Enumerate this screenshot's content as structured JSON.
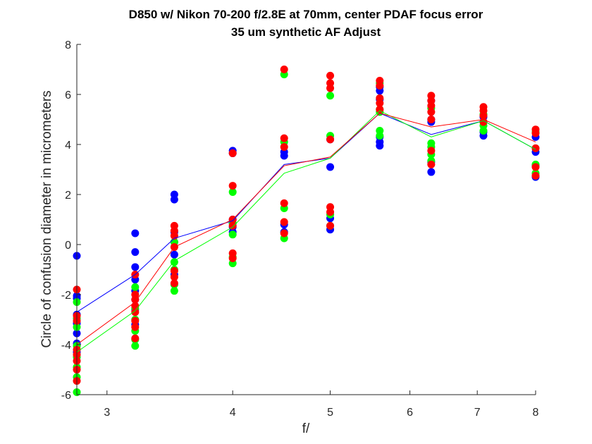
{
  "chart_data": {
    "type": "scatter",
    "title": "D850 w/ Nikon 70-200 f/2.8E at 70mm, center PDAF focus error",
    "subtitle": "35 um synthetic AF Adjust",
    "xlabel": "f/",
    "ylabel": "Circle of confusion diameter in micrometers",
    "xscale": "log",
    "xlim": [
      2.8,
      8
    ],
    "ylim": [
      -6,
      8
    ],
    "xticks": [
      3,
      4,
      5,
      6,
      7,
      8
    ],
    "yticks": [
      -6,
      -4,
      -2,
      0,
      2,
      4,
      6,
      8
    ],
    "grid": false,
    "legend": "none",
    "x": [
      2.8,
      3.2,
      3.5,
      4,
      4.5,
      5,
      5.6,
      6.3,
      7.1,
      8
    ],
    "series": [
      {
        "color": "#0000ff",
        "points": [
          [
            2.8,
            -0.45
          ],
          [
            2.8,
            -2.05
          ],
          [
            2.8,
            -2.15
          ],
          [
            2.8,
            -2.8
          ],
          [
            2.8,
            -3.15
          ],
          [
            2.8,
            -3.55
          ],
          [
            2.8,
            -3.95
          ],
          [
            2.8,
            -4.3
          ],
          [
            3.2,
            0.45
          ],
          [
            3.2,
            -0.3
          ],
          [
            3.2,
            -0.9
          ],
          [
            3.2,
            -1.4
          ],
          [
            3.2,
            -1.85
          ],
          [
            3.2,
            -2.2
          ],
          [
            3.2,
            -2.6
          ],
          [
            3.2,
            -3.2
          ],
          [
            3.5,
            2.0
          ],
          [
            3.5,
            1.8
          ],
          [
            3.5,
            0.5
          ],
          [
            3.5,
            0.1
          ],
          [
            3.5,
            -0.4
          ],
          [
            3.5,
            -1.2
          ],
          [
            4,
            3.75
          ],
          [
            4,
            3.65
          ],
          [
            4,
            1.0
          ],
          [
            4,
            0.85
          ],
          [
            4,
            0.7
          ],
          [
            4,
            0.5
          ],
          [
            4.5,
            3.7
          ],
          [
            4.5,
            3.55
          ],
          [
            4.5,
            0.8
          ],
          [
            4.5,
            0.5
          ],
          [
            5,
            4.2
          ],
          [
            5,
            3.1
          ],
          [
            5,
            1.05
          ],
          [
            5,
            0.6
          ],
          [
            5.6,
            6.3
          ],
          [
            5.6,
            6.15
          ],
          [
            5.6,
            5.8
          ],
          [
            5.6,
            4.3
          ],
          [
            5.6,
            4.1
          ],
          [
            5.6,
            3.95
          ],
          [
            6.3,
            5.75
          ],
          [
            6.3,
            5.0
          ],
          [
            6.3,
            4.9
          ],
          [
            6.3,
            3.3
          ],
          [
            6.3,
            2.9
          ],
          [
            7.1,
            5.1
          ],
          [
            7.1,
            4.9
          ],
          [
            7.1,
            4.5
          ],
          [
            7.1,
            4.35
          ],
          [
            8,
            4.3
          ],
          [
            8,
            3.7
          ],
          [
            8,
            3.15
          ],
          [
            8,
            2.7
          ]
        ],
        "means": [
          -2.7,
          -1.2,
          0.25,
          0.95,
          3.2,
          3.45,
          5.25,
          4.4,
          4.95,
          3.8
        ]
      },
      {
        "color": "#00ff00",
        "points": [
          [
            2.8,
            -2.3
          ],
          [
            2.8,
            -2.95
          ],
          [
            2.8,
            -3.3
          ],
          [
            2.8,
            -4.05
          ],
          [
            2.8,
            -4.5
          ],
          [
            2.8,
            -4.9
          ],
          [
            2.8,
            -5.3
          ],
          [
            2.8,
            -5.9
          ],
          [
            3.2,
            -1.7
          ],
          [
            3.2,
            -2.55
          ],
          [
            3.2,
            -3.0
          ],
          [
            3.2,
            -3.45
          ],
          [
            3.2,
            -3.8
          ],
          [
            3.2,
            -4.05
          ],
          [
            3.5,
            0.1
          ],
          [
            3.5,
            -0.7
          ],
          [
            3.5,
            -1.0
          ],
          [
            3.5,
            -1.6
          ],
          [
            3.5,
            -1.85
          ],
          [
            4,
            2.1
          ],
          [
            4,
            0.85
          ],
          [
            4,
            0.4
          ],
          [
            4,
            -0.5
          ],
          [
            4,
            -0.75
          ],
          [
            4.5,
            6.8
          ],
          [
            4.5,
            4.1
          ],
          [
            4.5,
            1.45
          ],
          [
            4.5,
            0.25
          ],
          [
            5,
            5.95
          ],
          [
            5,
            4.35
          ],
          [
            5,
            1.2
          ],
          [
            5,
            0.75
          ],
          [
            5.6,
            6.45
          ],
          [
            5.6,
            5.4
          ],
          [
            5.6,
            5.3
          ],
          [
            5.6,
            4.55
          ],
          [
            5.6,
            4.35
          ],
          [
            6.3,
            5.45
          ],
          [
            6.3,
            4.05
          ],
          [
            6.3,
            3.9
          ],
          [
            6.3,
            3.6
          ],
          [
            6.3,
            3.35
          ],
          [
            7.1,
            5.2
          ],
          [
            7.1,
            4.75
          ],
          [
            7.1,
            4.55
          ],
          [
            8,
            4.5
          ],
          [
            8,
            3.85
          ],
          [
            8,
            3.2
          ],
          [
            8,
            2.85
          ]
        ],
        "means": [
          -4.3,
          -2.65,
          -0.65,
          0.7,
          2.85,
          3.45,
          5.35,
          4.3,
          4.95,
          3.8
        ]
      },
      {
        "color": "#ff0000",
        "points": [
          [
            2.8,
            -1.8
          ],
          [
            2.8,
            -2.85
          ],
          [
            2.8,
            -3.05
          ],
          [
            2.8,
            -4.2
          ],
          [
            2.8,
            -4.4
          ],
          [
            2.8,
            -4.65
          ],
          [
            2.8,
            -5.0
          ],
          [
            2.8,
            -5.45
          ],
          [
            3.2,
            -1.2
          ],
          [
            3.2,
            -2.0
          ],
          [
            3.2,
            -2.2
          ],
          [
            3.2,
            -2.45
          ],
          [
            3.2,
            -2.7
          ],
          [
            3.2,
            -3.05
          ],
          [
            3.2,
            -3.3
          ],
          [
            3.2,
            -3.75
          ],
          [
            3.5,
            0.75
          ],
          [
            3.5,
            0.55
          ],
          [
            3.5,
            0.35
          ],
          [
            3.5,
            -0.1
          ],
          [
            3.5,
            -1.05
          ],
          [
            3.5,
            -1.3
          ],
          [
            3.5,
            -1.55
          ],
          [
            4,
            3.65
          ],
          [
            4,
            2.35
          ],
          [
            4,
            1.0
          ],
          [
            4,
            0.75
          ],
          [
            4,
            -0.35
          ],
          [
            4,
            -0.55
          ],
          [
            4.5,
            7.0
          ],
          [
            4.5,
            4.25
          ],
          [
            4.5,
            3.9
          ],
          [
            4.5,
            1.65
          ],
          [
            4.5,
            0.9
          ],
          [
            4.5,
            0.45
          ],
          [
            5,
            6.75
          ],
          [
            5,
            6.45
          ],
          [
            5,
            6.25
          ],
          [
            5,
            4.2
          ],
          [
            5,
            1.5
          ],
          [
            5,
            1.3
          ],
          [
            5,
            0.75
          ],
          [
            5.6,
            6.55
          ],
          [
            5.6,
            6.35
          ],
          [
            5.6,
            5.85
          ],
          [
            5.6,
            5.65
          ],
          [
            5.6,
            5.4
          ],
          [
            6.3,
            5.95
          ],
          [
            6.3,
            5.75
          ],
          [
            6.3,
            5.55
          ],
          [
            6.3,
            5.3
          ],
          [
            6.3,
            5.0
          ],
          [
            6.3,
            3.75
          ],
          [
            6.3,
            3.2
          ],
          [
            7.1,
            5.5
          ],
          [
            7.1,
            5.35
          ],
          [
            7.1,
            5.15
          ],
          [
            7.1,
            4.9
          ],
          [
            8,
            4.6
          ],
          [
            8,
            4.45
          ],
          [
            8,
            3.85
          ],
          [
            8,
            3.1
          ],
          [
            8,
            2.75
          ]
        ],
        "means": [
          -4.0,
          -2.3,
          -0.1,
          1.0,
          3.15,
          3.5,
          5.25,
          4.7,
          5.0,
          4.1
        ]
      }
    ]
  }
}
